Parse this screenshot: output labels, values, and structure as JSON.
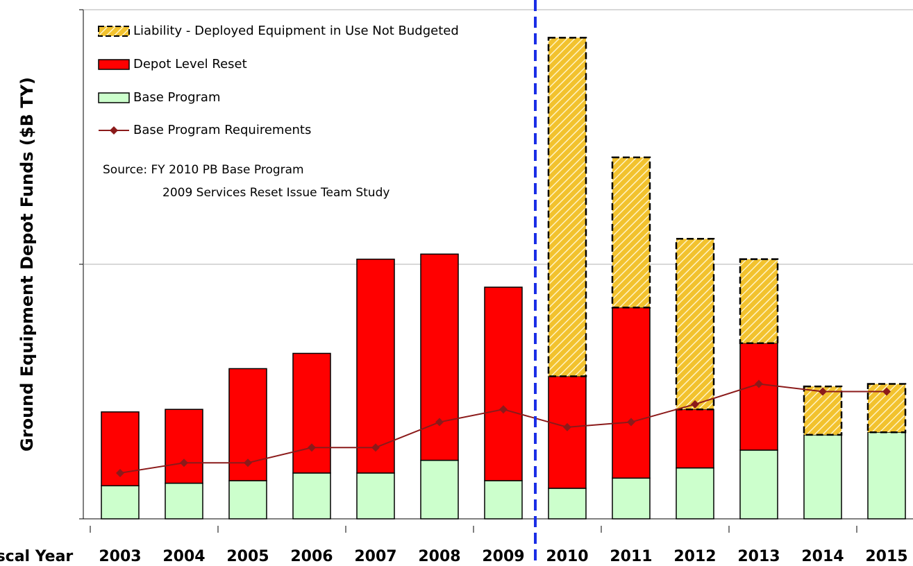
{
  "chart_data": {
    "type": "bar",
    "stacked": true,
    "ylabel": "Ground Equipment Depot Funds ($B TY)",
    "xlabel": "Fiscal Year",
    "annotations": [
      "Source: FY 2010 PB Base Program",
      "2009 Services Reset Issue Team Study"
    ],
    "categories": [
      "2003",
      "2004",
      "2005",
      "2006",
      "2007",
      "2008",
      "2009",
      "2010",
      "2011",
      "2012",
      "2013",
      "2014",
      "2015"
    ],
    "series": [
      {
        "name": "Liability - Deployed Equipment in Use Not Budgeted",
        "type": "bar",
        "color": "#f2c22e",
        "hatched": true,
        "values": [
          null,
          null,
          null,
          null,
          null,
          null,
          null,
          1.33,
          0.59,
          0.67,
          0.33,
          0.19,
          0.19
        ]
      },
      {
        "name": "Depot Level Reset",
        "type": "bar",
        "color": "#ff0000",
        "values": [
          0.29,
          0.29,
          0.44,
          0.47,
          0.84,
          0.81,
          0.76,
          0.44,
          0.67,
          0.23,
          0.42,
          null,
          null
        ]
      },
      {
        "name": "Base Program",
        "type": "bar",
        "color": "#ccffcc",
        "values": [
          0.13,
          0.14,
          0.15,
          0.18,
          0.18,
          0.23,
          0.15,
          0.12,
          0.16,
          0.2,
          0.27,
          0.33,
          0.34
        ]
      },
      {
        "name": "Base Program Requirements",
        "type": "line",
        "color": "#8b1a1a",
        "values": [
          0.18,
          0.22,
          0.22,
          0.28,
          0.28,
          0.38,
          0.43,
          0.36,
          0.38,
          0.45,
          0.53,
          0.5,
          0.5
        ]
      }
    ],
    "stack_order": [
      2,
      1,
      0
    ],
    "ylim": [
      0,
      2
    ],
    "yticks": [
      0,
      1,
      2
    ],
    "grid": true
  }
}
